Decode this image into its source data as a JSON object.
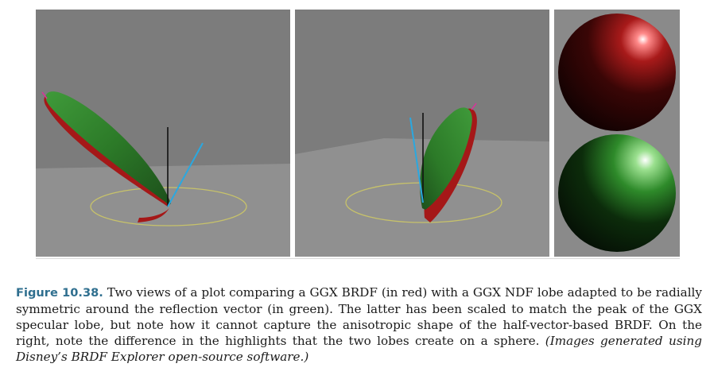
{
  "figure": {
    "label": "Figure 10.38.",
    "caption": " Two views of a plot comparing a GGX BRDF (in red) with a GGX NDF lobe adapted to be radially symmetric around the reflection vector (in green). The latter has been scaled to match the peak of the GGX specular lobe, but note how it cannot capture the anisotropic shape of the half-vector-based BRDF. On the right, note the difference in the highlights that the two lobes create on a sphere. ",
    "credit": "(Images generated using Disney’s BRDF Explorer open-source software.)"
  },
  "colors": {
    "ggx_brdf": "#b41c1c",
    "ndf_lobe": "#2f7f2a",
    "reflection_vector": "#2aa8e0",
    "normal": "#111111",
    "circle": "#c9c46a",
    "background": "#7d7d7d",
    "floor": "#8f8f8f"
  }
}
